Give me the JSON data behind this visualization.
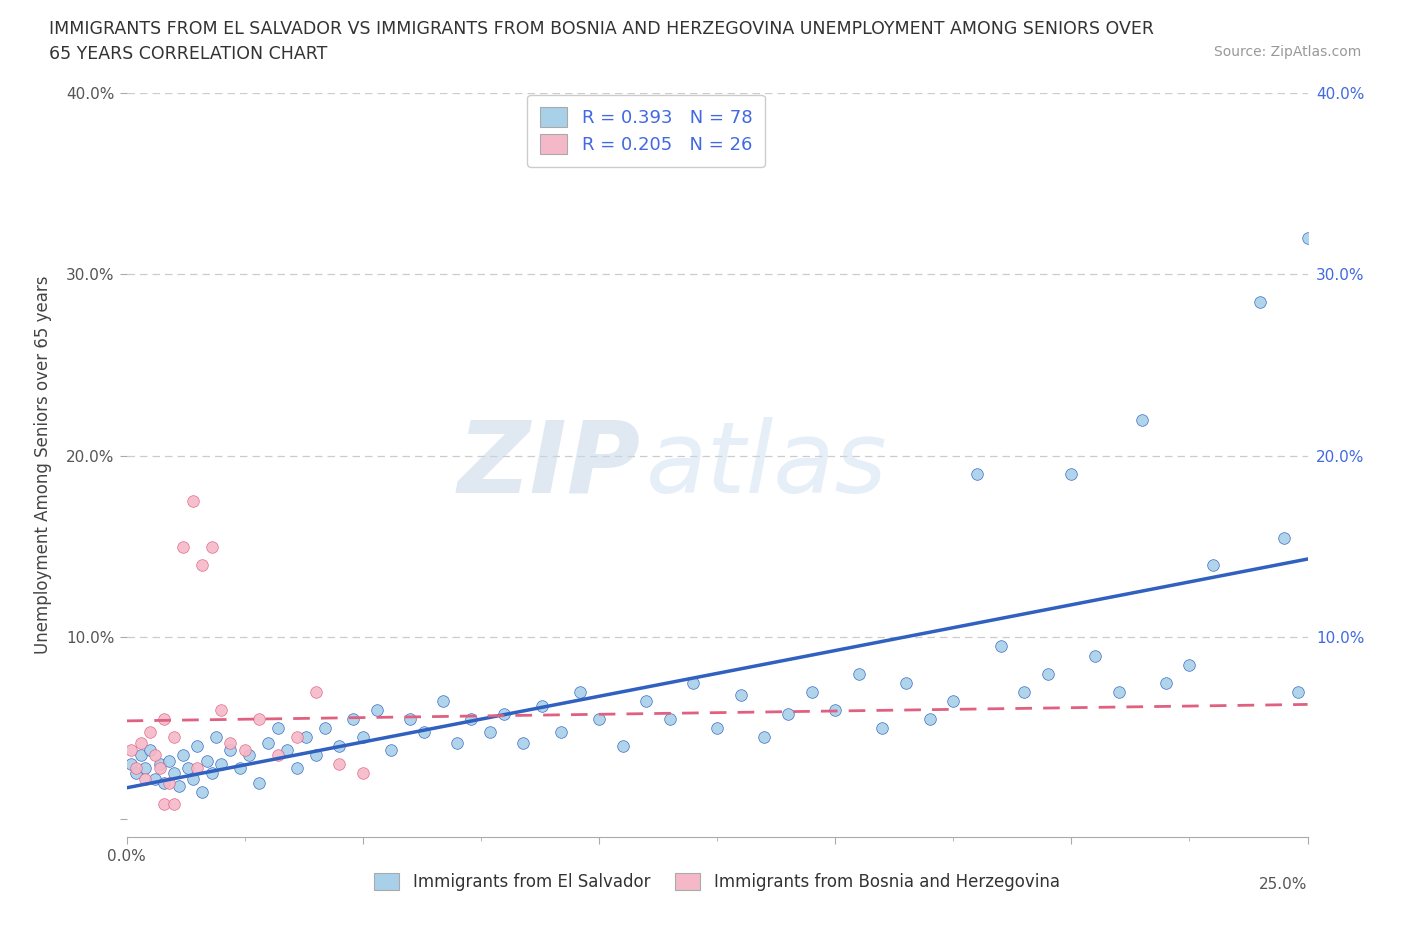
{
  "title_line1": "IMMIGRANTS FROM EL SALVADOR VS IMMIGRANTS FROM BOSNIA AND HERZEGOVINA UNEMPLOYMENT AMONG SENIORS OVER",
  "title_line2": "65 YEARS CORRELATION CHART",
  "source": "Source: ZipAtlas.com",
  "ylabel": "Unemployment Among Seniors over 65 years",
  "watermark_zip": "ZIP",
  "watermark_atlas": "atlas",
  "r_el_salvador": 0.393,
  "n_el_salvador": 78,
  "r_bosnia": 0.205,
  "n_bosnia": 26,
  "color_el_salvador": "#a8d0e8",
  "color_bosnia": "#f5b8c8",
  "line_color_el_salvador": "#3060c0",
  "line_color_bosnia": "#e06080",
  "xlim": [
    0.0,
    0.25
  ],
  "ylim": [
    -0.01,
    0.4
  ],
  "xticks": [
    0.0,
    0.05,
    0.1,
    0.15,
    0.2,
    0.25
  ],
  "yticks": [
    0.0,
    0.1,
    0.2,
    0.3,
    0.4
  ],
  "xtick_labels_left": [
    "0.0%",
    "",
    "",
    "",
    "",
    ""
  ],
  "xtick_labels_right": [
    "",
    "",
    "",
    "",
    "",
    "25.0%"
  ],
  "ytick_labels_left": [
    "",
    "10.0%",
    "20.0%",
    "30.0%",
    "40.0%"
  ],
  "ytick_labels_right": [
    "",
    "10.0%",
    "20.0%",
    "30.0%",
    "40.0%"
  ],
  "es_x": [
    0.001,
    0.002,
    0.003,
    0.004,
    0.005,
    0.006,
    0.007,
    0.008,
    0.009,
    0.01,
    0.011,
    0.012,
    0.013,
    0.014,
    0.015,
    0.016,
    0.017,
    0.018,
    0.019,
    0.02,
    0.022,
    0.024,
    0.026,
    0.028,
    0.03,
    0.032,
    0.034,
    0.036,
    0.038,
    0.04,
    0.042,
    0.045,
    0.048,
    0.05,
    0.053,
    0.056,
    0.06,
    0.063,
    0.067,
    0.07,
    0.073,
    0.077,
    0.08,
    0.084,
    0.088,
    0.092,
    0.096,
    0.1,
    0.105,
    0.11,
    0.115,
    0.12,
    0.125,
    0.13,
    0.135,
    0.14,
    0.145,
    0.15,
    0.155,
    0.16,
    0.165,
    0.17,
    0.175,
    0.18,
    0.185,
    0.19,
    0.195,
    0.2,
    0.205,
    0.21,
    0.215,
    0.22,
    0.225,
    0.23,
    0.24,
    0.245,
    0.248,
    0.25
  ],
  "es_y": [
    0.03,
    0.025,
    0.035,
    0.028,
    0.038,
    0.022,
    0.03,
    0.02,
    0.032,
    0.025,
    0.018,
    0.035,
    0.028,
    0.022,
    0.04,
    0.015,
    0.032,
    0.025,
    0.045,
    0.03,
    0.038,
    0.028,
    0.035,
    0.02,
    0.042,
    0.05,
    0.038,
    0.028,
    0.045,
    0.035,
    0.05,
    0.04,
    0.055,
    0.045,
    0.06,
    0.038,
    0.055,
    0.048,
    0.065,
    0.042,
    0.055,
    0.048,
    0.058,
    0.042,
    0.062,
    0.048,
    0.07,
    0.055,
    0.04,
    0.065,
    0.055,
    0.075,
    0.05,
    0.068,
    0.045,
    0.058,
    0.07,
    0.06,
    0.08,
    0.05,
    0.075,
    0.055,
    0.065,
    0.19,
    0.095,
    0.07,
    0.08,
    0.19,
    0.09,
    0.07,
    0.22,
    0.075,
    0.085,
    0.14,
    0.285,
    0.155,
    0.07,
    0.32
  ],
  "bh_x": [
    0.001,
    0.002,
    0.003,
    0.004,
    0.005,
    0.006,
    0.007,
    0.008,
    0.009,
    0.01,
    0.012,
    0.014,
    0.016,
    0.018,
    0.02,
    0.022,
    0.025,
    0.028,
    0.032,
    0.036,
    0.04,
    0.045,
    0.05,
    0.008,
    0.01,
    0.015
  ],
  "bh_y": [
    0.038,
    0.028,
    0.042,
    0.022,
    0.048,
    0.035,
    0.028,
    0.055,
    0.02,
    0.045,
    0.15,
    0.175,
    0.14,
    0.15,
    0.06,
    0.042,
    0.038,
    0.055,
    0.035,
    0.045,
    0.07,
    0.03,
    0.025,
    0.008,
    0.008,
    0.028
  ]
}
